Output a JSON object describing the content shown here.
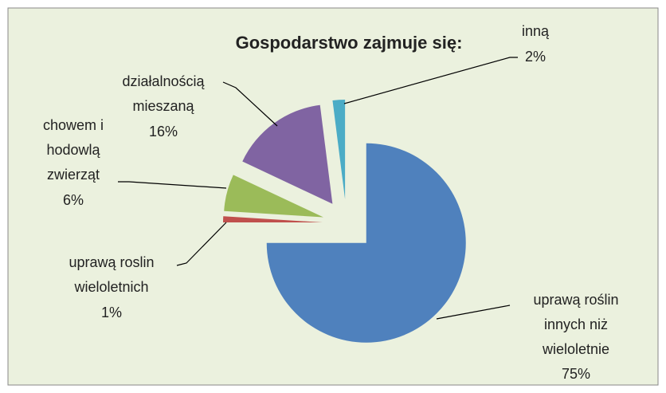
{
  "chart_data": {
    "type": "pie",
    "title": "Gospodarstwo zajmuje się:",
    "categories": [
      "uprawą roślin innych niż wieloletnie",
      "uprawą roslin wieloletnich",
      "chowem i hodowlą zwierząt",
      "działalnością mieszaną",
      "inną"
    ],
    "values": [
      75,
      1,
      6,
      16,
      2
    ],
    "value_labels": [
      "75%",
      "1%",
      "6%",
      "16%",
      "2%"
    ],
    "colors": [
      "#4f81bd",
      "#c0504d",
      "#9bbb59",
      "#8064a2",
      "#4bacc6"
    ]
  }
}
